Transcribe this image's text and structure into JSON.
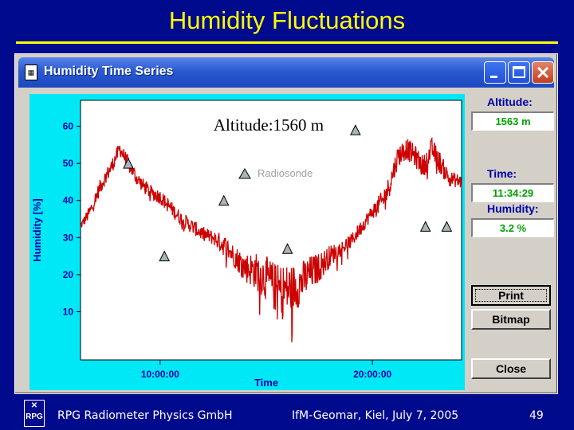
{
  "slide": {
    "title": "Humidity Fluctuations",
    "footer_left": "RPG Radiometer Physics GmbH",
    "footer_center": "IfM-Geomar, Kiel, July 7, 2005",
    "page_number": "49",
    "logo_text": "RPG"
  },
  "window": {
    "title": "Humidity Time Series",
    "app_icon": "app-icon",
    "controls": [
      "minimize-icon",
      "maximize-icon",
      "close-icon"
    ]
  },
  "panel": {
    "altitude_label": "Altitude:",
    "altitude_value": "1563 m",
    "time_label": "Time:",
    "time_value": "11:34:29",
    "humidity_label": "Humidity:",
    "humidity_value": "3.2 %",
    "print_button": "Print",
    "bitmap_button": "Bitmap",
    "close_button": "Close"
  },
  "colors": {
    "slide_background": "#000a8c",
    "title": "#ffff00",
    "plot_background": "#00e8f6",
    "trace": "#cc0000",
    "axis_text": "#0000aa",
    "readout_text": "#00a000"
  },
  "chart_data": {
    "type": "line",
    "title": "Altitude:1560 m",
    "xlabel": "Time",
    "ylabel": "Humidity [%]",
    "x_unit": "hours",
    "xlim": [
      6.25,
      24.2
    ],
    "ylim": [
      -3,
      67
    ],
    "x_ticks": [
      {
        "value": 10,
        "label": "10:00:00"
      },
      {
        "value": 20,
        "label": "20:00:00"
      }
    ],
    "y_ticks": [
      10,
      20,
      30,
      40,
      50,
      60
    ],
    "legend": [
      {
        "label": "Radiosonde",
        "marker": "triangle"
      }
    ],
    "series": [
      {
        "name": "",
        "style": "line",
        "x": [
          6.25,
          6.7,
          7.2,
          7.7,
          8.1,
          8.5,
          8.9,
          9.2,
          9.6,
          10.0,
          10.5,
          11.0,
          11.5,
          12.0,
          12.5,
          13.0,
          13.5,
          14.0,
          14.5,
          15.0,
          15.5,
          16.0,
          16.5,
          17.0,
          17.5,
          18.0,
          18.5,
          19.0,
          19.5,
          20.0,
          20.5,
          20.8,
          21.2,
          21.6,
          22.0,
          22.4,
          22.8,
          23.2,
          23.6,
          24.2
        ],
        "y": [
          33,
          37,
          44,
          49,
          54,
          50,
          46,
          44,
          42,
          41,
          38,
          35,
          33,
          31,
          30,
          28,
          25,
          22,
          21,
          19,
          16,
          16,
          17,
          20,
          22,
          25,
          27,
          29,
          33,
          37,
          40,
          44,
          52,
          54,
          52,
          49,
          54,
          50,
          46,
          45
        ],
        "fluctuation_amplitude": [
          1,
          2,
          2,
          2,
          2,
          2,
          2,
          2,
          2,
          2,
          2,
          2,
          2,
          2,
          2,
          3,
          3,
          4,
          5,
          6,
          7,
          7,
          6,
          5,
          4,
          3,
          2,
          2,
          2,
          2,
          3,
          3,
          3,
          3,
          3,
          3,
          3,
          3,
          2,
          2
        ]
      },
      {
        "name": "Radiosonde",
        "style": "triangle-markers",
        "x": [
          8.5,
          13.0,
          16.0,
          22.5,
          10.2,
          19.2,
          23.5
        ],
        "y": [
          50,
          40,
          27,
          33,
          25,
          59,
          33
        ]
      }
    ]
  }
}
